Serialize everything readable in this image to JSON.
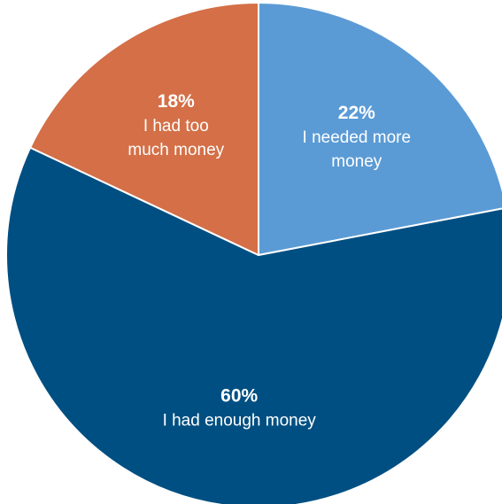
{
  "chart_data": {
    "type": "pie",
    "title": "",
    "start": "12 o'clock",
    "direction": "clockwise",
    "slices": [
      {
        "label_lines": [
          "I needed more",
          "money"
        ],
        "value": 22,
        "value_label": "22%",
        "color": "#5b9bd5"
      },
      {
        "label_lines": [
          "I had enough money"
        ],
        "value": 60,
        "value_label": "60%",
        "color": "#004f82"
      },
      {
        "label_lines": [
          "I had too",
          "much money"
        ],
        "value": 18,
        "value_label": "18%",
        "color": "#d46f47"
      }
    ]
  }
}
